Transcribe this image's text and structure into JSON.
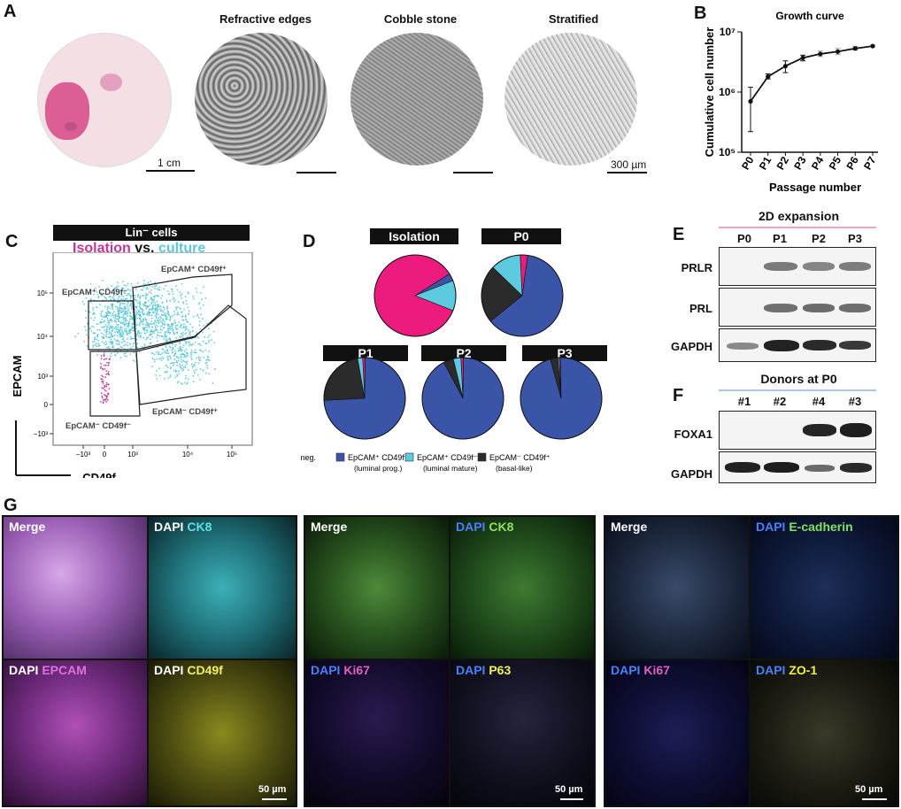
{
  "panels": {
    "A": {
      "letter": "A",
      "titles": [
        "Refractive edges",
        "Cobble stone",
        "Stratified"
      ],
      "scalebars": [
        "1 cm",
        "300 µm"
      ]
    },
    "B": {
      "letter": "B",
      "chart_data": {
        "type": "line",
        "title": "Growth curve",
        "xlabel": "Passage number",
        "ylabel": "Cumulative cell number",
        "yscale": "log",
        "ylim": [
          100000,
          10000000
        ],
        "yticks": [
          "10⁵",
          "10⁶",
          "10⁷"
        ],
        "categories": [
          "P0",
          "P1",
          "P2",
          "P3",
          "P4",
          "P5",
          "P6",
          "P7"
        ],
        "values": [
          700000,
          1800000,
          2700000,
          3700000,
          4300000,
          4700000,
          5300000,
          5800000
        ],
        "err_low": [
          220000,
          1650000,
          2100000,
          3300000,
          3900000,
          4200000,
          5000000,
          5600000
        ],
        "err_high": [
          1200000,
          2000000,
          3300000,
          4100000,
          4800000,
          5300000,
          5700000,
          6000000
        ]
      }
    },
    "C": {
      "letter": "C",
      "header": "Lin⁻ cells",
      "legend_isolation": "Isolation",
      "legend_vs": "vs.",
      "legend_culture": "culture",
      "ylabel": "EPCAM",
      "xlabel": "CD49f",
      "gates": [
        "EpCAM⁺ CD49f⁺",
        "EpCAM⁺ CD49f⁻",
        "EpCAM⁻ CD49f⁺",
        "EpCAM⁻ CD49f⁻"
      ],
      "yticks": [
        "10⁵",
        "10⁴",
        "10³",
        "0",
        "−10³"
      ],
      "xticks": [
        "−10³",
        "0",
        "10³",
        "10⁴",
        "10⁵"
      ],
      "colors": {
        "isolation": "#c0399a",
        "culture": "#5ec8d8"
      }
    },
    "D": {
      "letter": "D",
      "chart_data": {
        "type": "pie",
        "pies": [
          {
            "name": "Isolation",
            "values": [
              85,
              3,
              12,
              0
            ]
          },
          {
            "name": "P0",
            "values": [
              3,
              62,
              12,
              23
            ]
          },
          {
            "name": "P1",
            "values": [
              1,
              74,
              2,
              23
            ]
          },
          {
            "name": "P2",
            "values": [
              1,
              92,
              3,
              4
            ]
          },
          {
            "name": "P3",
            "values": [
              0.5,
              96,
              0.5,
              3
            ]
          }
        ],
        "categories": [
          "All neg.",
          "EpCAM⁺ CD49f⁺",
          "EpCAM⁺ CD49f⁻",
          "EpCAM⁻ CD49f⁺"
        ],
        "sublabels": [
          "",
          "(luminal prog.)",
          "(luminal mature)",
          "(basal-like)"
        ],
        "colors": [
          "#ec1b7d",
          "#3a54a8",
          "#5ccbe0",
          "#2b2b2b"
        ]
      }
    },
    "E": {
      "letter": "E",
      "header": "2D expansion",
      "lanes": [
        "P0",
        "P1",
        "P2",
        "P3"
      ],
      "blots": [
        "PRLR",
        "PRL",
        "GAPDH"
      ]
    },
    "F": {
      "letter": "F",
      "header": "Donors at P0",
      "lanes": [
        "#1",
        "#2",
        "#4",
        "#3"
      ],
      "blots": [
        "FOXA1",
        "GAPDH"
      ]
    },
    "G": {
      "letter": "G",
      "group1": [
        "Merge",
        "CK8",
        "EPCAM",
        "CD49f"
      ],
      "group2": [
        "Merge",
        "CK8",
        "Ki67",
        "P63"
      ],
      "group3": [
        "Merge",
        "E-cadherin",
        "Ki67",
        "ZO-1"
      ],
      "dapi": "DAPI",
      "scalebar": "50 µm"
    }
  }
}
